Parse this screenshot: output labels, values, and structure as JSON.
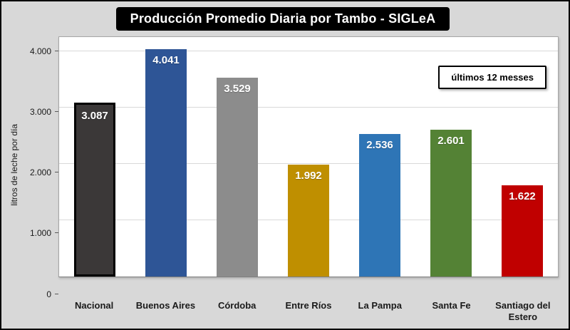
{
  "chart_data": {
    "type": "bar",
    "title": "Producción Promedio Diaria por Tambo - SIGLeA",
    "note": "últimos 12 messes",
    "ylabel": "litros de leche por día",
    "xlabel": "",
    "ymax": 4250,
    "ylim": [
      0,
      4250
    ],
    "grid": true,
    "legend": "none",
    "yticks": [
      {
        "value": 0,
        "label": "0"
      },
      {
        "value": 1000,
        "label": "1.000"
      },
      {
        "value": 2000,
        "label": "2.000"
      },
      {
        "value": 3000,
        "label": "3.000"
      },
      {
        "value": 4000,
        "label": "4.000"
      }
    ],
    "categories": [
      "Nacional",
      "Buenos Aires",
      "Córdoba",
      "Entre Ríos",
      "La Pampa",
      "Santa Fe",
      "Santiago del Estero"
    ],
    "values": [
      3087,
      4041,
      3529,
      1992,
      2536,
      2601,
      1622
    ],
    "value_labels": [
      "3.087",
      "4.041",
      "3.529",
      "1.992",
      "2.536",
      "2.601",
      "1.622"
    ],
    "bar_colors": [
      "#3b3838",
      "#2e5596",
      "#8c8c8c",
      "#bf8f00",
      "#2e75b6",
      "#548235",
      "#c00000"
    ],
    "highlight_outline": [
      "#000000",
      null,
      null,
      null,
      null,
      null,
      null
    ],
    "value_label_color": "#ffffff"
  }
}
